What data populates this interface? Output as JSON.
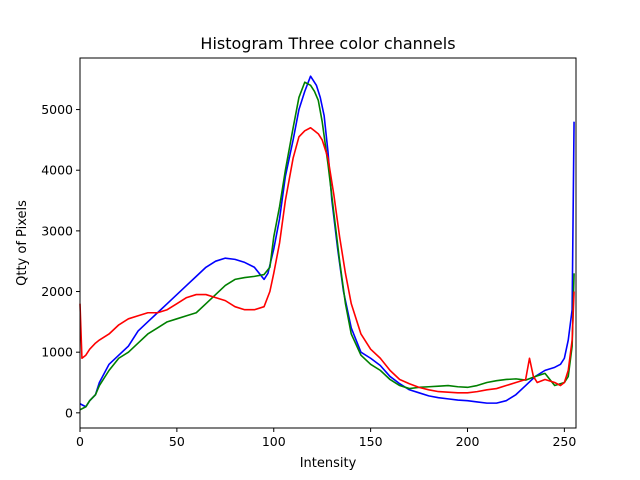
{
  "chart_data": {
    "type": "line",
    "title": "Histogram Three color channels",
    "xlabel": "Intensity",
    "ylabel": "Qtty of Pixels",
    "xlim": [
      0,
      256
    ],
    "ylim": [
      -250,
      5850
    ],
    "xticks": [
      0,
      50,
      100,
      150,
      200,
      250
    ],
    "yticks": [
      0,
      1000,
      2000,
      3000,
      4000,
      5000
    ],
    "grid": false,
    "series": [
      {
        "color": "#0000ff",
        "points": [
          [
            0,
            150
          ],
          [
            3,
            100
          ],
          [
            5,
            200
          ],
          [
            8,
            300
          ],
          [
            10,
            500
          ],
          [
            15,
            800
          ],
          [
            20,
            950
          ],
          [
            25,
            1100
          ],
          [
            30,
            1350
          ],
          [
            35,
            1500
          ],
          [
            40,
            1650
          ],
          [
            45,
            1800
          ],
          [
            50,
            1950
          ],
          [
            55,
            2100
          ],
          [
            60,
            2250
          ],
          [
            65,
            2400
          ],
          [
            70,
            2500
          ],
          [
            75,
            2550
          ],
          [
            80,
            2530
          ],
          [
            85,
            2480
          ],
          [
            90,
            2400
          ],
          [
            95,
            2200
          ],
          [
            97,
            2300
          ],
          [
            100,
            2700
          ],
          [
            103,
            3200
          ],
          [
            106,
            3900
          ],
          [
            110,
            4500
          ],
          [
            113,
            5000
          ],
          [
            116,
            5300
          ],
          [
            119,
            5550
          ],
          [
            122,
            5400
          ],
          [
            124,
            5200
          ],
          [
            126,
            4900
          ],
          [
            128,
            4300
          ],
          [
            130,
            3500
          ],
          [
            133,
            2700
          ],
          [
            136,
            2000
          ],
          [
            140,
            1400
          ],
          [
            145,
            1000
          ],
          [
            150,
            900
          ],
          [
            155,
            780
          ],
          [
            160,
            600
          ],
          [
            165,
            480
          ],
          [
            170,
            380
          ],
          [
            175,
            330
          ],
          [
            180,
            280
          ],
          [
            185,
            250
          ],
          [
            190,
            230
          ],
          [
            195,
            210
          ],
          [
            200,
            200
          ],
          [
            205,
            180
          ],
          [
            210,
            160
          ],
          [
            215,
            160
          ],
          [
            220,
            200
          ],
          [
            225,
            300
          ],
          [
            230,
            450
          ],
          [
            235,
            600
          ],
          [
            240,
            700
          ],
          [
            245,
            750
          ],
          [
            248,
            800
          ],
          [
            250,
            900
          ],
          [
            252,
            1200
          ],
          [
            254,
            1700
          ],
          [
            255,
            4800
          ]
        ]
      },
      {
        "color": "#008000",
        "points": [
          [
            0,
            50
          ],
          [
            3,
            100
          ],
          [
            5,
            200
          ],
          [
            8,
            300
          ],
          [
            10,
            450
          ],
          [
            15,
            700
          ],
          [
            20,
            900
          ],
          [
            25,
            1000
          ],
          [
            30,
            1150
          ],
          [
            35,
            1300
          ],
          [
            40,
            1400
          ],
          [
            45,
            1500
          ],
          [
            50,
            1550
          ],
          [
            55,
            1600
          ],
          [
            60,
            1650
          ],
          [
            65,
            1800
          ],
          [
            70,
            1950
          ],
          [
            75,
            2100
          ],
          [
            80,
            2200
          ],
          [
            85,
            2230
          ],
          [
            90,
            2250
          ],
          [
            95,
            2280
          ],
          [
            98,
            2400
          ],
          [
            100,
            2900
          ],
          [
            103,
            3400
          ],
          [
            106,
            4000
          ],
          [
            110,
            4700
          ],
          [
            113,
            5200
          ],
          [
            116,
            5450
          ],
          [
            119,
            5400
          ],
          [
            121,
            5300
          ],
          [
            123,
            5150
          ],
          [
            125,
            4800
          ],
          [
            128,
            4100
          ],
          [
            131,
            3300
          ],
          [
            134,
            2500
          ],
          [
            137,
            1800
          ],
          [
            140,
            1300
          ],
          [
            145,
            950
          ],
          [
            150,
            800
          ],
          [
            155,
            700
          ],
          [
            160,
            550
          ],
          [
            165,
            450
          ],
          [
            170,
            400
          ],
          [
            175,
            420
          ],
          [
            180,
            430
          ],
          [
            185,
            440
          ],
          [
            190,
            450
          ],
          [
            195,
            430
          ],
          [
            200,
            420
          ],
          [
            205,
            450
          ],
          [
            210,
            500
          ],
          [
            215,
            530
          ],
          [
            220,
            550
          ],
          [
            225,
            560
          ],
          [
            230,
            540
          ],
          [
            235,
            600
          ],
          [
            240,
            650
          ],
          [
            245,
            450
          ],
          [
            250,
            500
          ],
          [
            252,
            600
          ],
          [
            254,
            1100
          ],
          [
            255,
            2300
          ]
        ]
      },
      {
        "color": "#ff0000",
        "points": [
          [
            0,
            1800
          ],
          [
            1,
            900
          ],
          [
            3,
            950
          ],
          [
            5,
            1050
          ],
          [
            8,
            1150
          ],
          [
            10,
            1200
          ],
          [
            15,
            1300
          ],
          [
            20,
            1450
          ],
          [
            25,
            1550
          ],
          [
            30,
            1600
          ],
          [
            35,
            1650
          ],
          [
            40,
            1650
          ],
          [
            45,
            1700
          ],
          [
            50,
            1800
          ],
          [
            55,
            1900
          ],
          [
            60,
            1950
          ],
          [
            65,
            1950
          ],
          [
            70,
            1900
          ],
          [
            75,
            1850
          ],
          [
            80,
            1750
          ],
          [
            85,
            1700
          ],
          [
            90,
            1700
          ],
          [
            95,
            1750
          ],
          [
            98,
            2000
          ],
          [
            100,
            2300
          ],
          [
            103,
            2800
          ],
          [
            106,
            3500
          ],
          [
            110,
            4200
          ],
          [
            113,
            4550
          ],
          [
            116,
            4650
          ],
          [
            119,
            4700
          ],
          [
            121,
            4650
          ],
          [
            123,
            4600
          ],
          [
            125,
            4500
          ],
          [
            128,
            4200
          ],
          [
            131,
            3600
          ],
          [
            134,
            2900
          ],
          [
            137,
            2300
          ],
          [
            140,
            1800
          ],
          [
            145,
            1300
          ],
          [
            150,
            1050
          ],
          [
            155,
            900
          ],
          [
            160,
            700
          ],
          [
            165,
            550
          ],
          [
            170,
            480
          ],
          [
            175,
            420
          ],
          [
            180,
            380
          ],
          [
            185,
            350
          ],
          [
            190,
            340
          ],
          [
            195,
            330
          ],
          [
            200,
            330
          ],
          [
            205,
            350
          ],
          [
            210,
            380
          ],
          [
            215,
            400
          ],
          [
            220,
            450
          ],
          [
            225,
            500
          ],
          [
            230,
            550
          ],
          [
            232,
            900
          ],
          [
            234,
            600
          ],
          [
            236,
            500
          ],
          [
            240,
            550
          ],
          [
            245,
            500
          ],
          [
            248,
            450
          ],
          [
            250,
            500
          ],
          [
            252,
            700
          ],
          [
            254,
            1200
          ],
          [
            255,
            2000
          ]
        ]
      }
    ]
  }
}
